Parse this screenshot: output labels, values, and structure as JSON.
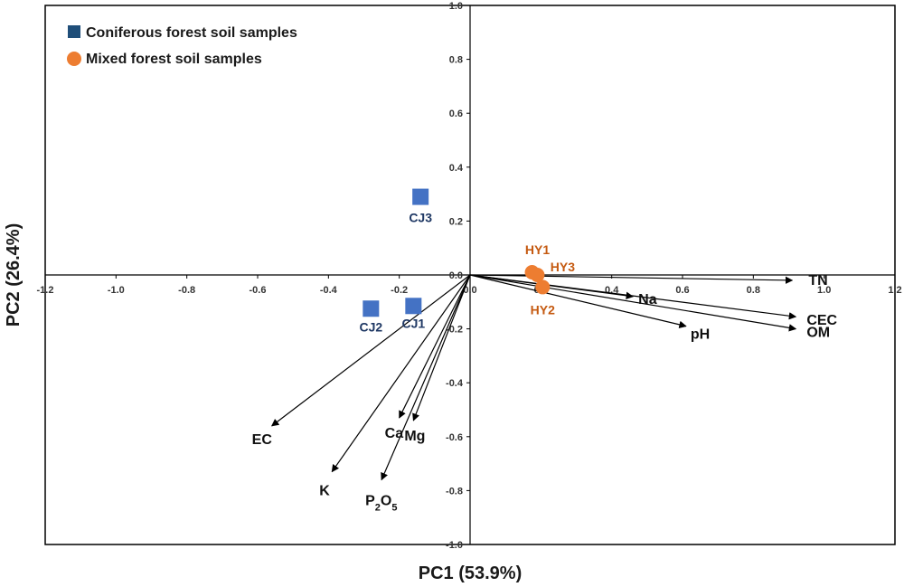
{
  "chart_data": {
    "type": "scatter",
    "subtype": "pca-biplot",
    "title": "",
    "xlabel": "PC1 (53.9%)",
    "ylabel": "PC2 (26.4%)",
    "xlim": [
      -1.2,
      1.2
    ],
    "ylim": [
      -1.0,
      1.0
    ],
    "x_ticks": [
      -1.2,
      -1.0,
      -0.8,
      -0.6,
      -0.4,
      -0.2,
      0.0,
      0.2,
      0.4,
      0.6,
      0.8,
      1.0,
      1.2
    ],
    "y_ticks": [
      -1.0,
      -0.8,
      -0.6,
      -0.4,
      -0.2,
      0.0,
      0.2,
      0.4,
      0.6,
      0.8,
      1.0
    ],
    "x_tick_labels": [
      "-1.2",
      "-1.0",
      "-0.8",
      "-0.6",
      "-0.4",
      "-0.2",
      "0.0",
      "0.2",
      "0.4",
      "0.6",
      "0.8",
      "1.0",
      "1.2"
    ],
    "y_tick_labels": [
      "-1.0",
      "-0.8",
      "-0.6",
      "-0.4",
      "-0.2",
      "0.0",
      "0.2",
      "0.4",
      "0.6",
      "0.8",
      "1.0"
    ],
    "grid": false,
    "legend_position": "top-left",
    "series": [
      {
        "name": "Coniferous forest soil samples",
        "marker": "square",
        "color": "#4472c4",
        "legend_color": "#1f4e79",
        "label_color": "#1f3864",
        "points": [
          {
            "label": "CJ1",
            "x": -0.16,
            "y": -0.115
          },
          {
            "label": "CJ2",
            "x": -0.28,
            "y": -0.125
          },
          {
            "label": "CJ3",
            "x": -0.14,
            "y": 0.29
          }
        ]
      },
      {
        "name": "Mixed forest soil samples",
        "marker": "circle",
        "color": "#ed7d31",
        "label_color": "#c55a11",
        "points": [
          {
            "label": "HY1",
            "x": 0.175,
            "y": 0.01
          },
          {
            "label": "HY3",
            "x": 0.19,
            "y": 0.0
          },
          {
            "label": "HY2",
            "x": 0.205,
            "y": -0.045
          }
        ]
      }
    ],
    "vectors": [
      {
        "name": "TN",
        "sub": "",
        "x": 0.91,
        "y": -0.02
      },
      {
        "name": "CEC",
        "sub": "",
        "x": 0.92,
        "y": -0.155
      },
      {
        "name": "OM",
        "sub": "",
        "x": 0.92,
        "y": -0.2
      },
      {
        "name": "pH",
        "sub": "",
        "x": 0.61,
        "y": -0.19
      },
      {
        "name": "Na",
        "sub": "",
        "x": 0.46,
        "y": -0.08
      },
      {
        "name": "EC",
        "sub": "",
        "x": -0.56,
        "y": -0.56
      },
      {
        "name": "K",
        "sub": "",
        "x": -0.39,
        "y": -0.73
      },
      {
        "name": "P",
        "sub": "2",
        "name2": "O",
        "sub2": "5",
        "x": -0.25,
        "y": -0.76
      },
      {
        "name": "Ca",
        "sub": "",
        "x": -0.2,
        "y": -0.53
      },
      {
        "name": "Mg",
        "sub": "",
        "x": -0.16,
        "y": -0.54
      }
    ]
  }
}
